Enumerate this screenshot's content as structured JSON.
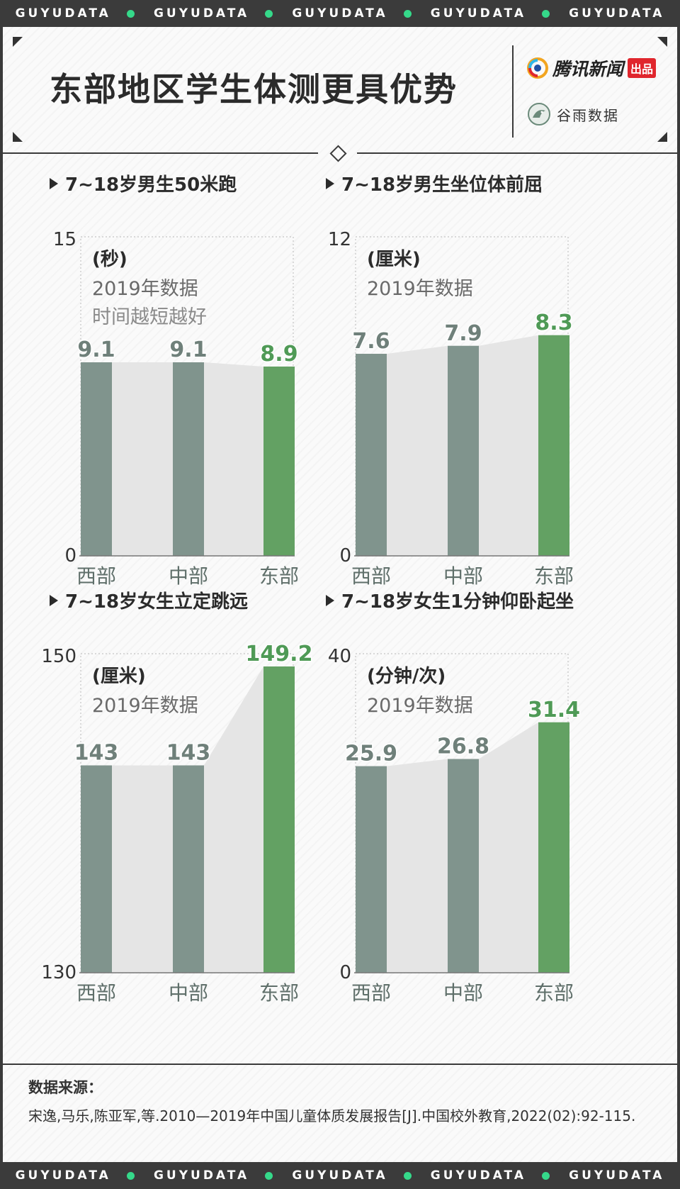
{
  "band": {
    "text": "GUYUDATA",
    "accent": "#35d98a"
  },
  "header": {
    "title": "东部地区学生体测更具优势",
    "logo_tencent": "腾讯新闻",
    "logo_tencent_badge": "出品",
    "logo_guyu": "谷雨数据"
  },
  "source": {
    "label": "数据来源：",
    "text": "宋逸,马乐,陈亚军,等.2010—2019年中国儿童体质发展报告[J].中国校外教育,2022(02):92-115."
  },
  "colors": {
    "bar_gray": "#80948d",
    "bar_green": "#63a163",
    "label_gray": "#6f807a",
    "label_green": "#4f9a56",
    "area": "#e5e5e5"
  },
  "chart_data": [
    {
      "type": "bar",
      "title": "7~18岁男生50米跑",
      "unit": "(秒)",
      "subtitle": "2019年数据",
      "note": "时间越短越好",
      "categories": [
        "西部",
        "中部",
        "东部"
      ],
      "values": [
        9.1,
        9.1,
        8.9
      ],
      "value_labels": [
        "9.1",
        "9.1",
        "8.9"
      ],
      "ylim": [
        0,
        15
      ],
      "ytick_labels": [
        "15",
        "0"
      ],
      "highlight": 2
    },
    {
      "type": "bar",
      "title": "7~18岁男生坐位体前屈",
      "unit": "(厘米)",
      "subtitle": "2019年数据",
      "note": "",
      "categories": [
        "西部",
        "中部",
        "东部"
      ],
      "values": [
        7.6,
        7.9,
        8.3
      ],
      "value_labels": [
        "7.6",
        "7.9",
        "8.3"
      ],
      "ylim": [
        0,
        12
      ],
      "ytick_labels": [
        "12",
        "0"
      ],
      "highlight": 2
    },
    {
      "type": "bar",
      "title": "7~18岁女生立定跳远",
      "unit": "(厘米)",
      "subtitle": "2019年数据",
      "note": "",
      "categories": [
        "西部",
        "中部",
        "东部"
      ],
      "values": [
        143,
        143,
        149.2
      ],
      "value_labels": [
        "143",
        "143",
        "149.2"
      ],
      "ylim": [
        130,
        150
      ],
      "ytick_labels": [
        "150",
        "130"
      ],
      "highlight": 2
    },
    {
      "type": "bar",
      "title": "7~18岁女生1分钟仰卧起坐",
      "unit": "(分钟/次)",
      "subtitle": "2019年数据",
      "note": "",
      "categories": [
        "西部",
        "中部",
        "东部"
      ],
      "values": [
        25.9,
        26.8,
        31.4
      ],
      "value_labels": [
        "25.9",
        "26.8",
        "31.4"
      ],
      "ylim": [
        0,
        40
      ],
      "ytick_labels": [
        "40",
        "0"
      ],
      "highlight": 2
    }
  ]
}
